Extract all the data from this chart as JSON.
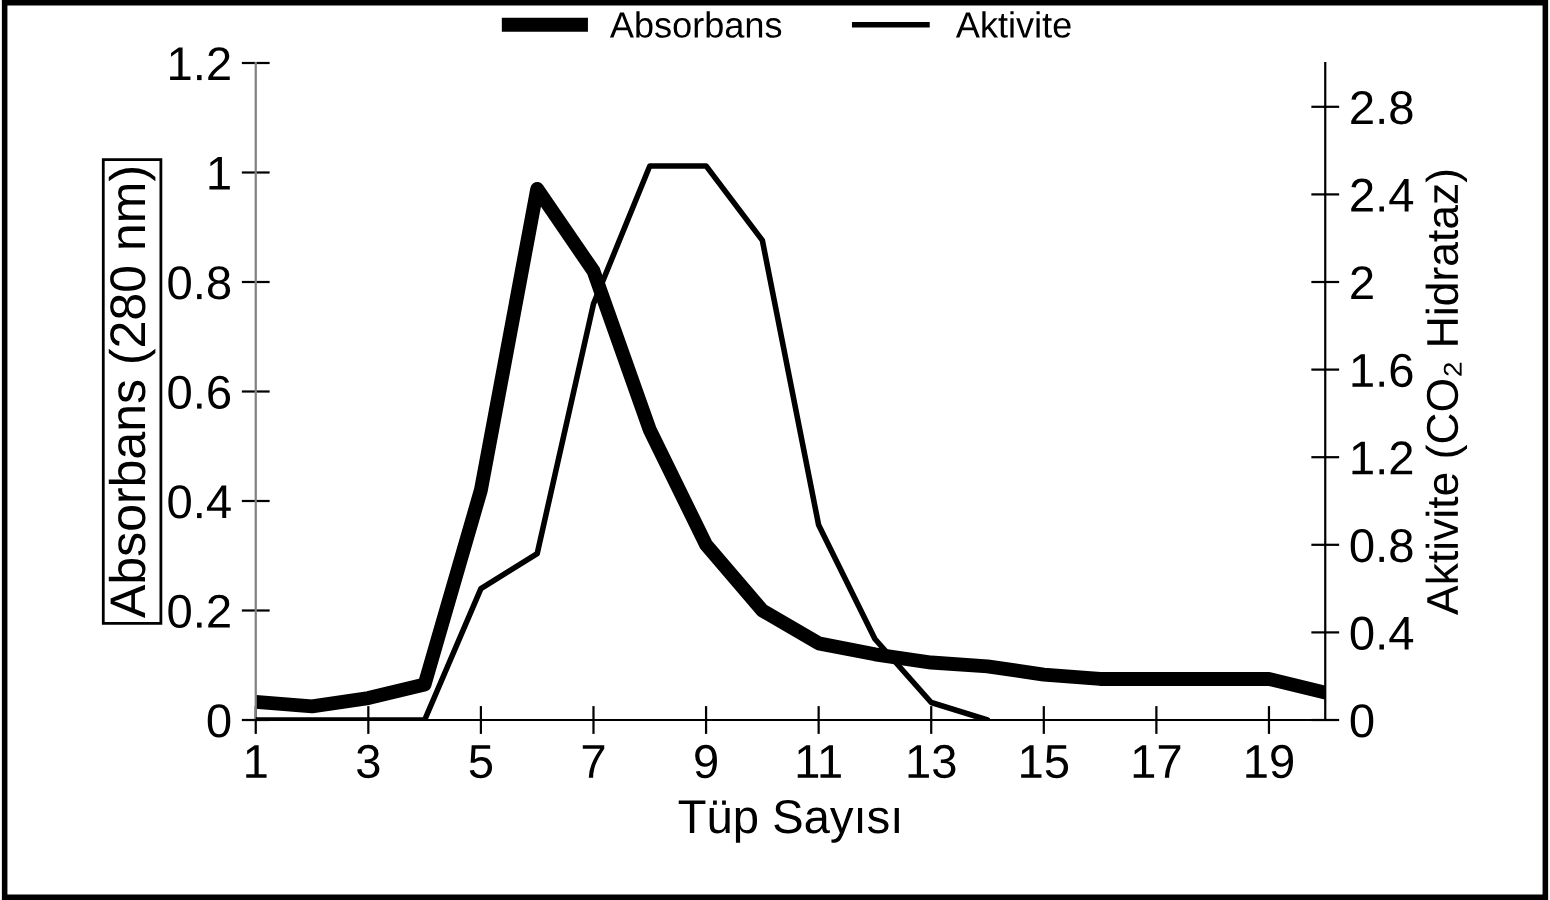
{
  "chart_data": {
    "type": "line",
    "x": [
      1,
      2,
      3,
      4,
      5,
      6,
      7,
      8,
      9,
      10,
      11,
      12,
      13,
      14,
      15,
      16,
      17,
      18,
      19,
      20
    ],
    "series": [
      {
        "name": "Absorbans",
        "color": "#000000",
        "values": [
          0.033,
          0.025,
          0.04,
          0.065,
          0.42,
          0.97,
          0.82,
          0.53,
          0.32,
          0.2,
          0.14,
          0.12,
          0.105,
          0.098,
          0.083,
          0.075,
          0.075,
          0.075,
          0.075,
          0.05
        ]
      },
      {
        "name": "Aktivite",
        "color": "#000000",
        "axis": "y2",
        "values": [
          0,
          0,
          0,
          0,
          0.6,
          0.76,
          1.9,
          2.53,
          2.53,
          2.19,
          0.89,
          0.37,
          0.08,
          0,
          null,
          null,
          null,
          null,
          null,
          null
        ]
      }
    ],
    "xlabel": "Tüp Sayısı",
    "ylabel": "Absorbans (280 nm)",
    "y2label": "Aktivite (CO₂ Hidrataz)",
    "xlim": [
      1,
      20
    ],
    "xticks": [
      1,
      3,
      5,
      7,
      9,
      11,
      13,
      15,
      17,
      19
    ],
    "ylim": [
      0,
      1.2
    ],
    "yticks": [
      0,
      0.2,
      0.4,
      0.6,
      0.8,
      1,
      1.2
    ],
    "y2lim": [
      0,
      3
    ],
    "y2ticks": [
      0,
      0.4,
      0.8,
      1.2,
      1.6,
      2,
      2.4,
      2.8
    ],
    "legend": "top",
    "grid": false,
    "marker": "none",
    "line_style": "solid"
  }
}
